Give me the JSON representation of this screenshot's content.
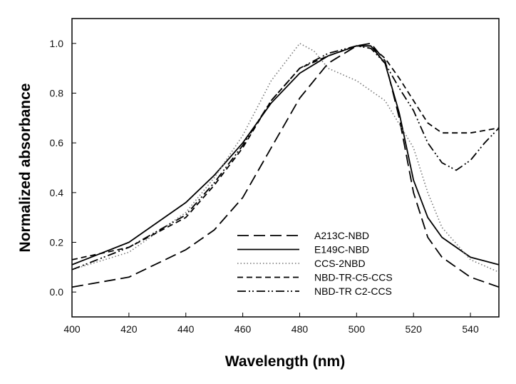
{
  "chart_data": {
    "type": "line",
    "title": "",
    "xlabel": "Wavelength (nm)",
    "ylabel": "Normalized absorbance",
    "xlim": [
      400,
      550
    ],
    "ylim": [
      -0.1,
      1.1
    ],
    "xticks": [
      400,
      420,
      440,
      460,
      480,
      500,
      520,
      540
    ],
    "yticks": [
      "0.0",
      "0.2",
      "0.4",
      "0.6",
      "0.8",
      "1.0"
    ],
    "grid": false,
    "legend_position": "lower-center",
    "series": [
      {
        "name": "A213C-NBD",
        "style": "long-dash",
        "x": [
          400,
          420,
          440,
          450,
          460,
          470,
          480,
          490,
          500,
          505,
          510,
          515,
          520,
          525,
          530,
          540,
          550
        ],
        "y": [
          0.02,
          0.06,
          0.17,
          0.25,
          0.38,
          0.58,
          0.78,
          0.92,
          0.99,
          1.0,
          0.93,
          0.7,
          0.4,
          0.22,
          0.14,
          0.06,
          0.02
        ]
      },
      {
        "name": "E149C-NBD",
        "style": "solid",
        "x": [
          400,
          420,
          440,
          450,
          460,
          470,
          480,
          490,
          500,
          505,
          510,
          515,
          520,
          525,
          530,
          540,
          550
        ],
        "y": [
          0.11,
          0.2,
          0.36,
          0.47,
          0.6,
          0.76,
          0.88,
          0.95,
          0.99,
          0.99,
          0.92,
          0.72,
          0.45,
          0.3,
          0.22,
          0.14,
          0.11
        ]
      },
      {
        "name": "CCS-2NBD",
        "style": "dotted",
        "x": [
          400,
          420,
          440,
          450,
          460,
          470,
          480,
          485,
          490,
          500,
          510,
          520,
          525,
          530,
          540,
          550
        ],
        "y": [
          0.09,
          0.16,
          0.32,
          0.46,
          0.63,
          0.85,
          1.0,
          0.97,
          0.9,
          0.85,
          0.77,
          0.58,
          0.4,
          0.26,
          0.13,
          0.08
        ]
      },
      {
        "name": "NBD-TR-C5-CCS",
        "style": "short-dash",
        "x": [
          400,
          420,
          440,
          450,
          460,
          470,
          480,
          490,
          500,
          505,
          510,
          515,
          520,
          525,
          530,
          540,
          550
        ],
        "y": [
          0.13,
          0.18,
          0.3,
          0.43,
          0.58,
          0.77,
          0.9,
          0.95,
          0.99,
          0.99,
          0.94,
          0.86,
          0.77,
          0.68,
          0.64,
          0.64,
          0.66
        ]
      },
      {
        "name": "NBD-TR C2-CCS",
        "style": "dash-dot",
        "x": [
          400,
          420,
          440,
          450,
          460,
          470,
          480,
          490,
          500,
          505,
          510,
          515,
          520,
          525,
          530,
          535,
          540,
          545,
          550
        ],
        "y": [
          0.09,
          0.18,
          0.31,
          0.44,
          0.59,
          0.77,
          0.9,
          0.96,
          0.99,
          0.98,
          0.92,
          0.82,
          0.73,
          0.6,
          0.52,
          0.49,
          0.53,
          0.6,
          0.66
        ]
      }
    ]
  }
}
